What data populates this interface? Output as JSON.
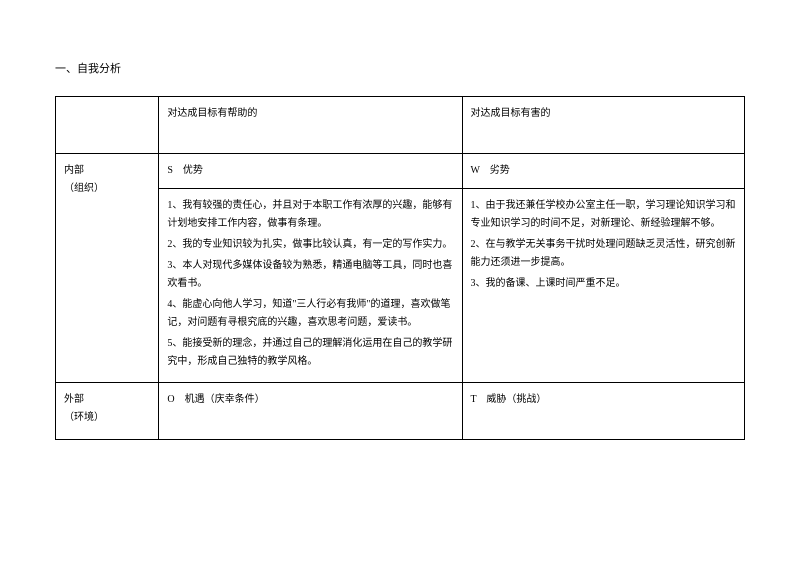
{
  "heading": "一、自我分析",
  "header": {
    "col1": "",
    "col2": "对达成目标有帮助的",
    "col3": "对达成目标有害的"
  },
  "row_internal_label": {
    "line1": "内部",
    "line2": "（组织）",
    "s_label": "S　优势",
    "w_label": "W　劣势"
  },
  "strengths": {
    "p1": "1、我有较强的责任心，并且对于本职工作有浓厚的兴趣，能够有计划地安排工作内容，做事有条理。",
    "p2": "2、我的专业知识较为扎实，做事比较认真，有一定的写作实力。",
    "p3": "3、本人对现代多媒体设备较为熟悉，精通电脑等工具，同时也喜欢看书。",
    "p4": "4、能虚心向他人学习，知道\"三人行必有我师\"的道理，喜欢做笔记，对问题有寻根究底的兴趣，喜欢思考问题，爱读书。",
    "p5": "5、能接受新的理念，并通过自己的理解消化运用在自己的教学研究中，形成自己独特的教学风格。"
  },
  "weaknesses": {
    "p1": "1、由于我还兼任学校办公室主任一职，学习理论知识学习和专业知识学习的时间不足，对新理论、新经验理解不够。",
    "p2": "2、在与教学无关事务干扰时处理问题缺乏灵活性，研究创新能力还须进一步提高。",
    "p3": "3、我的备课、上课时间严重不足。"
  },
  "row_external_label": {
    "line1": "外部",
    "line2": "（环境）",
    "o_label": "O　机遇（庆幸条件）",
    "t_label": "T　威胁（挑战）"
  }
}
